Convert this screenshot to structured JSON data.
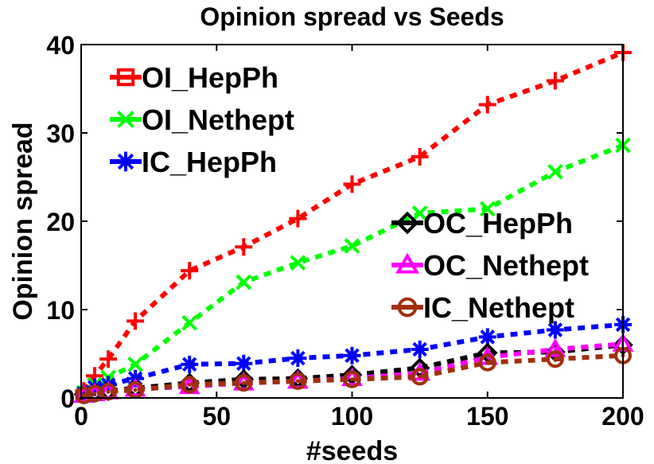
{
  "chart_data": {
    "type": "line",
    "title": "Opinion spread vs Seeds",
    "xlabel": "#seeds",
    "ylabel": "Opinion spread",
    "xlim": [
      0,
      200
    ],
    "ylim": [
      0,
      40
    ],
    "xticks": [
      0,
      50,
      100,
      150,
      200
    ],
    "yticks": [
      0,
      10,
      20,
      30,
      40
    ],
    "grid": false,
    "x": [
      1,
      5,
      10,
      20,
      40,
      60,
      80,
      100,
      125,
      150,
      175,
      200
    ],
    "series": [
      {
        "name": "OI_HepPh",
        "color": "#ff0000",
        "marker": "plus",
        "legend_marker": "square",
        "legend_group": 0,
        "values": [
          0.8,
          2.5,
          4.4,
          8.7,
          14.4,
          17.1,
          20.3,
          24.2,
          27.3,
          33.2,
          35.9,
          39.1
        ]
      },
      {
        "name": "OI_Nethept",
        "color": "#00ff00",
        "marker": "x",
        "legend_marker": "x",
        "legend_group": 0,
        "values": [
          0.6,
          1.5,
          2.3,
          3.8,
          8.5,
          13.1,
          15.3,
          17.2,
          20.9,
          21.4,
          25.6,
          28.6
        ]
      },
      {
        "name": "IC_HepPh",
        "color": "#0000ff",
        "marker": "asterisk",
        "legend_marker": "asterisk",
        "legend_group": 0,
        "values": [
          0.5,
          1.2,
          1.5,
          2.2,
          3.8,
          3.9,
          4.5,
          4.8,
          5.5,
          6.9,
          7.7,
          8.3
        ]
      },
      {
        "name": "OC_HepPh",
        "color": "#000000",
        "marker": "diamond",
        "legend_marker": "diamond",
        "legend_group": 1,
        "values": [
          0.4,
          0.6,
          0.8,
          1.1,
          1.7,
          2.1,
          2.2,
          2.6,
          3.4,
          5.1,
          5.2,
          6.0
        ]
      },
      {
        "name": "OC_Nethept",
        "color": "#ff00ff",
        "marker": "triangle",
        "legend_marker": "triangle",
        "legend_group": 1,
        "values": [
          0.3,
          0.5,
          0.7,
          1.0,
          1.3,
          1.7,
          1.9,
          2.2,
          2.8,
          4.6,
          5.5,
          6.1
        ]
      },
      {
        "name": "IC_Nethept",
        "color": "#a0300a",
        "marker": "circle",
        "legend_marker": "circle",
        "legend_group": 1,
        "values": [
          0.3,
          0.5,
          0.7,
          0.9,
          1.5,
          1.7,
          1.9,
          2.1,
          2.4,
          4.0,
          4.4,
          4.8
        ]
      }
    ]
  }
}
